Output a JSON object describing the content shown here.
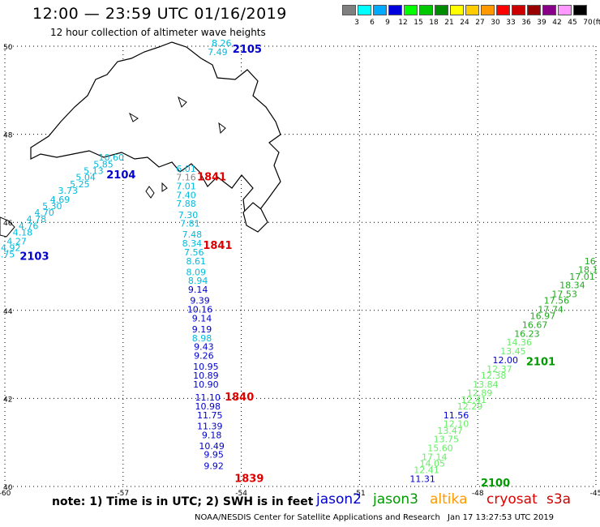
{
  "title": "12:00 — 23:59 UTC 01/16/2019",
  "subtitle": "12 hour collection of altimeter wave heights",
  "legend": {
    "unit": "(ft)",
    "bins": [
      {
        "label": "3",
        "color": "#7f7f7f"
      },
      {
        "label": "6",
        "color": "#00ffff"
      },
      {
        "label": "9",
        "color": "#00aaff"
      },
      {
        "label": "12",
        "color": "#0000dd"
      },
      {
        "label": "15",
        "color": "#00ff00"
      },
      {
        "label": "18",
        "color": "#00c800"
      },
      {
        "label": "21",
        "color": "#008c00"
      },
      {
        "label": "24",
        "color": "#ffff00"
      },
      {
        "label": "27",
        "color": "#ffcc00"
      },
      {
        "label": "30",
        "color": "#ff9900"
      },
      {
        "label": "33",
        "color": "#ff0000"
      },
      {
        "label": "36",
        "color": "#cc0000"
      },
      {
        "label": "39",
        "color": "#990000"
      },
      {
        "label": "42",
        "color": "#880088"
      },
      {
        "label": "45",
        "color": "#ff99ff"
      },
      {
        "label": "70",
        "color": "#000000"
      }
    ]
  },
  "axes": {
    "lon": [
      -60,
      -57,
      -54,
      -51,
      -48,
      -45
    ],
    "lat": [
      40,
      42,
      44,
      46,
      48,
      50
    ],
    "lon_labels": [
      "-60",
      "-57",
      "-54",
      "-51",
      "-48",
      "-45"
    ],
    "lat_labels": [
      "40",
      "42",
      "44",
      "46",
      "48",
      "50"
    ]
  },
  "colors": {
    "jason2": "#0000cc",
    "jason3": "#009900",
    "altika": "#ff9900",
    "cryosat": "#dd0000",
    "s3a": "#cc0000",
    "cyan": "#00bbdd",
    "lightgreen": "#66ee66",
    "green": "#22aa22",
    "gray": "#888888"
  },
  "pass_times": [
    {
      "label": "2105",
      "lon": -53.85,
      "lat": 49.85,
      "color": "#0000cc"
    },
    {
      "label": "2104",
      "lon": -57.05,
      "lat": 47.0,
      "color": "#0000cc"
    },
    {
      "label": "2103",
      "lon": -59.25,
      "lat": 45.15,
      "color": "#0000cc"
    },
    {
      "label": "1841",
      "lon": -54.75,
      "lat": 46.95,
      "color": "#dd0000"
    },
    {
      "label": "1841",
      "lon": -54.6,
      "lat": 45.4,
      "color": "#dd0000"
    },
    {
      "label": "1840",
      "lon": -54.05,
      "lat": 41.95,
      "color": "#dd0000"
    },
    {
      "label": "1839",
      "lon": -53.8,
      "lat": 40.1,
      "color": "#dd0000"
    },
    {
      "label": "2101",
      "lon": -46.4,
      "lat": 42.75,
      "color": "#009900"
    },
    {
      "label": "2100",
      "lon": -47.55,
      "lat": 40.0,
      "color": "#009900"
    }
  ],
  "tracks": [
    {
      "name": "track-2105",
      "points": [
        {
          "v": "8.26",
          "lon": -54.5,
          "lat": 50.0,
          "c": "#00bbdd"
        },
        {
          "v": "7.49",
          "lon": -54.6,
          "lat": 49.8,
          "c": "#00bbdd"
        }
      ]
    },
    {
      "name": "track-2104",
      "points": [
        {
          "v": "10.60",
          "lon": -57.3,
          "lat": 47.4,
          "c": "#00bbdd"
        },
        {
          "v": "5.85",
          "lon": -57.5,
          "lat": 47.25,
          "c": "#00bbdd"
        },
        {
          "v": "5.13",
          "lon": -57.75,
          "lat": 47.1,
          "c": "#00bbdd"
        },
        {
          "v": "5.04",
          "lon": -57.95,
          "lat": 46.95,
          "c": "#00bbdd"
        },
        {
          "v": "5.25",
          "lon": -58.1,
          "lat": 46.8,
          "c": "#00bbdd"
        },
        {
          "v": "3.73",
          "lon": -58.4,
          "lat": 46.65,
          "c": "#00bbdd"
        },
        {
          "v": "4.69",
          "lon": -58.6,
          "lat": 46.45,
          "c": "#00bbdd"
        },
        {
          "v": "5.30",
          "lon": -58.8,
          "lat": 46.3,
          "c": "#00bbdd"
        },
        {
          "v": "4.70",
          "lon": -59.0,
          "lat": 46.15,
          "c": "#00bbdd"
        },
        {
          "v": "4.78",
          "lon": -59.2,
          "lat": 46.0,
          "c": "#00bbdd"
        }
      ]
    },
    {
      "name": "track-2103",
      "points": [
        {
          "v": "4.76",
          "lon": -59.4,
          "lat": 45.85,
          "c": "#00bbdd"
        },
        {
          "v": "4.18",
          "lon": -59.55,
          "lat": 45.7,
          "c": "#00bbdd"
        },
        {
          "v": "4.27",
          "lon": -59.7,
          "lat": 45.5,
          "c": "#00bbdd"
        },
        {
          "v": "4.92",
          "lon": -59.85,
          "lat": 45.35,
          "c": "#00bbdd"
        },
        {
          "v": "4.75",
          "lon": -60.0,
          "lat": 45.2,
          "c": "#00bbdd"
        }
      ]
    },
    {
      "name": "track-1841",
      "points": [
        {
          "v": "6.01",
          "lon": -55.4,
          "lat": 47.15,
          "c": "#00bbdd"
        },
        {
          "v": "7.16",
          "lon": -55.4,
          "lat": 46.95,
          "c": "#888888"
        },
        {
          "v": "7.01",
          "lon": -55.4,
          "lat": 46.75,
          "c": "#00bbdd"
        },
        {
          "v": "7.40",
          "lon": -55.4,
          "lat": 46.55,
          "c": "#00bbdd"
        },
        {
          "v": "7.88",
          "lon": -55.4,
          "lat": 46.35,
          "c": "#00bbdd"
        },
        {
          "v": "7.30",
          "lon": -55.35,
          "lat": 46.1,
          "c": "#00bbdd"
        },
        {
          "v": "7.81",
          "lon": -55.3,
          "lat": 45.9,
          "c": "#00bbdd"
        },
        {
          "v": "7.48",
          "lon": -55.25,
          "lat": 45.65,
          "c": "#00bbdd"
        },
        {
          "v": "8.34",
          "lon": -55.25,
          "lat": 45.45,
          "c": "#00bbdd"
        },
        {
          "v": "7.56",
          "lon": -55.2,
          "lat": 45.25,
          "c": "#00bbdd"
        },
        {
          "v": "8.61",
          "lon": -55.15,
          "lat": 45.05,
          "c": "#00bbdd"
        },
        {
          "v": "8.09",
          "lon": -55.15,
          "lat": 44.8,
          "c": "#00bbdd"
        },
        {
          "v": "8.94",
          "lon": -55.1,
          "lat": 44.6,
          "c": "#00bbdd"
        },
        {
          "v": "9.14",
          "lon": -55.1,
          "lat": 44.4,
          "c": "#0000cc"
        },
        {
          "v": "9.39",
          "lon": -55.05,
          "lat": 44.15,
          "c": "#0000cc"
        },
        {
          "v": "10.16",
          "lon": -55.05,
          "lat": 43.95,
          "c": "#0000cc"
        },
        {
          "v": "9.14",
          "lon": -55.0,
          "lat": 43.75,
          "c": "#0000cc"
        },
        {
          "v": "9.19",
          "lon": -55.0,
          "lat": 43.5,
          "c": "#0000cc"
        },
        {
          "v": "8.98",
          "lon": -55.0,
          "lat": 43.3,
          "c": "#00bbdd"
        },
        {
          "v": "9.43",
          "lon": -54.95,
          "lat": 43.1,
          "c": "#0000cc"
        },
        {
          "v": "9.26",
          "lon": -54.95,
          "lat": 42.9,
          "c": "#0000cc"
        },
        {
          "v": "10.95",
          "lon": -54.9,
          "lat": 42.65,
          "c": "#0000cc"
        },
        {
          "v": "10.89",
          "lon": -54.9,
          "lat": 42.45,
          "c": "#0000cc"
        },
        {
          "v": "10.90",
          "lon": -54.9,
          "lat": 42.25,
          "c": "#0000cc"
        },
        {
          "v": "11.10",
          "lon": -54.85,
          "lat": 41.95,
          "c": "#0000cc"
        },
        {
          "v": "10.98",
          "lon": -54.85,
          "lat": 41.75,
          "c": "#0000cc"
        },
        {
          "v": "11.75",
          "lon": -54.8,
          "lat": 41.55,
          "c": "#0000cc"
        },
        {
          "v": "11.39",
          "lon": -54.8,
          "lat": 41.3,
          "c": "#0000cc"
        },
        {
          "v": "9.18",
          "lon": -54.75,
          "lat": 41.1,
          "c": "#0000cc"
        },
        {
          "v": "10.49",
          "lon": -54.75,
          "lat": 40.85,
          "c": "#0000cc"
        },
        {
          "v": "9.95",
          "lon": -54.7,
          "lat": 40.65,
          "c": "#0000cc"
        },
        {
          "v": "9.92",
          "lon": -54.7,
          "lat": 40.4,
          "c": "#0000cc"
        }
      ]
    },
    {
      "name": "track-2101",
      "points": [
        {
          "v": "16",
          "lon": -45.15,
          "lat": 45.05,
          "c": "#22aa22"
        },
        {
          "v": "18.1",
          "lon": -45.2,
          "lat": 44.85,
          "c": "#22aa22"
        },
        {
          "v": "17.01",
          "lon": -45.35,
          "lat": 44.7,
          "c": "#22aa22"
        },
        {
          "v": "18.34",
          "lon": -45.6,
          "lat": 44.5,
          "c": "#22aa22"
        },
        {
          "v": "17.53",
          "lon": -45.8,
          "lat": 44.3,
          "c": "#22aa22"
        },
        {
          "v": "17.56",
          "lon": -46.0,
          "lat": 44.15,
          "c": "#22aa22"
        },
        {
          "v": "17.74",
          "lon": -46.15,
          "lat": 43.95,
          "c": "#22aa22"
        },
        {
          "v": "16.97",
          "lon": -46.35,
          "lat": 43.8,
          "c": "#22aa22"
        },
        {
          "v": "16.67",
          "lon": -46.55,
          "lat": 43.6,
          "c": "#22aa22"
        },
        {
          "v": "16.23",
          "lon": -46.75,
          "lat": 43.4,
          "c": "#22aa22"
        },
        {
          "v": "14.36",
          "lon": -46.95,
          "lat": 43.2,
          "c": "#66ee66"
        },
        {
          "v": "13.45",
          "lon": -47.1,
          "lat": 43.0,
          "c": "#66ee66"
        },
        {
          "v": "12.00",
          "lon": -47.3,
          "lat": 42.8,
          "c": "#0000cc"
        },
        {
          "v": "12.37",
          "lon": -47.45,
          "lat": 42.6,
          "c": "#66ee66"
        },
        {
          "v": "12.38",
          "lon": -47.6,
          "lat": 42.45,
          "c": "#66ee66"
        },
        {
          "v": "13.84",
          "lon": -47.8,
          "lat": 42.25,
          "c": "#66ee66"
        },
        {
          "v": "12.89",
          "lon": -47.95,
          "lat": 42.05,
          "c": "#66ee66"
        },
        {
          "v": "12.41",
          "lon": -48.1,
          "lat": 41.9,
          "c": "#66ee66"
        },
        {
          "v": "12.29",
          "lon": -48.2,
          "lat": 41.75,
          "c": "#66ee66"
        },
        {
          "v": "11.56",
          "lon": -48.55,
          "lat": 41.55,
          "c": "#0000cc"
        },
        {
          "v": "12.10",
          "lon": -48.55,
          "lat": 41.35,
          "c": "#66ee66"
        },
        {
          "v": "13.47",
          "lon": -48.7,
          "lat": 41.2,
          "c": "#66ee66"
        },
        {
          "v": "13.75",
          "lon": -48.8,
          "lat": 41.0,
          "c": "#66ee66"
        },
        {
          "v": "15.60",
          "lon": -48.95,
          "lat": 40.8,
          "c": "#66ee66"
        },
        {
          "v": "17.14",
          "lon": -49.1,
          "lat": 40.6,
          "c": "#66ee66"
        },
        {
          "v": "14.05",
          "lon": -49.15,
          "lat": 40.45,
          "c": "#66ee66"
        },
        {
          "v": "12.41",
          "lon": -49.3,
          "lat": 40.3,
          "c": "#66ee66"
        },
        {
          "v": "11.31",
          "lon": -49.4,
          "lat": 40.1,
          "c": "#0000cc"
        }
      ]
    }
  ],
  "footer": {
    "note": "note:  1) Time is in UTC;  2) SWH is in feet",
    "missions": [
      {
        "label": "jason2",
        "color": "#0000cc"
      },
      {
        "label": "jason3",
        "color": "#009900"
      },
      {
        "label": "altika",
        "color": "#ff9900"
      },
      {
        "label": "cryosat",
        "color": "#dd0000"
      },
      {
        "label": "s3a",
        "color": "#cc0000"
      }
    ],
    "credit": "NOAA/NESDIS Center for Satellite Applications and Research",
    "timestamp": "Jan 17 13:27:53 UTC 2019"
  }
}
